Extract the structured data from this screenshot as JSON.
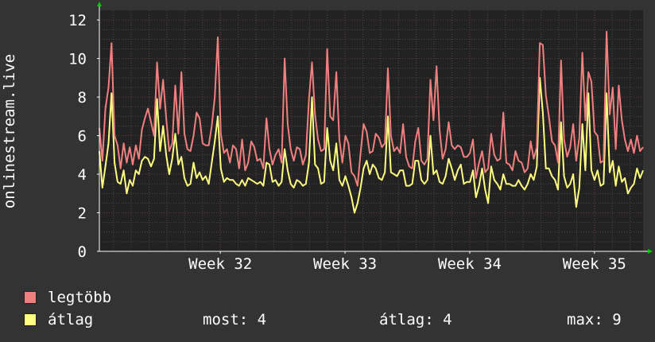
{
  "colors": {
    "background": "#333333",
    "plot_background": "#222222",
    "grid": "#4a4a4a",
    "axis": "#ffffff",
    "max_series": "#f07f7f",
    "avg_series": "#ffff80",
    "arrow": "#00cc00"
  },
  "legend": {
    "max_label": "legtöbb",
    "avg_label": "átlag"
  },
  "stats": {
    "current": "most: 4",
    "average": "átlag: 4",
    "maximum": "max: 9"
  },
  "chart_data": {
    "type": "line",
    "ylabel": "onlinestream.live",
    "xlabel": "",
    "title": "",
    "ylim": [
      0,
      12.5
    ],
    "yticks": [
      0,
      2,
      4,
      6,
      8,
      10,
      12
    ],
    "xticks": [
      "Week 32",
      "Week 33",
      "Week 34",
      "Week 35"
    ],
    "x_range_weeks": [
      31.03,
      35.39
    ],
    "xtick_positions_weeks": [
      32,
      33,
      34,
      35
    ],
    "grid": true,
    "legend_placement": "bottom-left",
    "series": [
      {
        "name": "legtöbb",
        "color": "#f07f7f",
        "x_start_week": 31.03,
        "x_end_week": 35.39,
        "values": [
          6.4,
          4.7,
          7.4,
          8.5,
          10.8,
          6.0,
          5.5,
          4.3,
          5.6,
          4.6,
          5.4,
          4.5,
          5.5,
          4.8,
          6.3,
          6.9,
          7.4,
          6.7,
          6.0,
          9.8,
          7.4,
          8.9,
          6.9,
          5.2,
          5.6,
          8.6,
          6.1,
          9.3,
          6.1,
          5.3,
          5.2,
          6.0,
          7.2,
          6.9,
          5.6,
          5.5,
          5.5,
          6.5,
          8.0,
          11.1,
          6.1,
          5.1,
          5.3,
          4.6,
          5.5,
          5.3,
          4.3,
          5.8,
          4.2,
          4.6,
          5.7,
          5.4,
          4.7,
          4.8,
          4.3,
          6.9,
          5.3,
          4.5,
          5.0,
          5.3,
          4.6,
          10.0,
          6.6,
          5.3,
          4.7,
          5.4,
          5.3,
          4.5,
          5.0,
          7.9,
          9.8,
          7.1,
          5.8,
          5.2,
          5.3,
          10.5,
          7.0,
          6.8,
          9.3,
          5.8,
          4.6,
          6.0,
          5.6,
          4.1,
          3.9,
          3.4,
          5.1,
          6.6,
          6.2,
          5.1,
          5.2,
          6.1,
          5.9,
          5.4,
          5.6,
          9.5,
          6.0,
          5.2,
          5.4,
          5.1,
          6.6,
          4.9,
          4.4,
          4.3,
          5.7,
          6.4,
          4.7,
          4.5,
          4.8,
          8.9,
          6.8,
          9.6,
          6.3,
          4.8,
          5.3,
          6.7,
          5.5,
          5.3,
          5.5,
          5.4,
          4.9,
          4.9,
          5.1,
          5.8,
          3.8,
          4.6,
          5.2,
          4.1,
          4.3,
          6.1,
          5.0,
          4.7,
          4.8,
          7.2,
          4.6,
          4.5,
          4.2,
          5.2,
          4.7,
          4.6,
          4.1,
          4.3,
          5.7,
          4.8,
          5.4,
          10.8,
          10.7,
          8.1,
          7.0,
          5.7,
          5.5,
          4.6,
          9.9,
          5.8,
          4.9,
          5.4,
          6.6,
          4.7,
          5.9,
          10.3,
          6.8,
          9.3,
          8.8,
          6.2,
          6.0,
          4.6,
          4.7,
          11.4,
          7.1,
          8.5,
          5.3,
          8.6,
          6.8,
          5.8,
          5.2,
          5.8,
          5.1,
          6.0,
          5.2,
          5.4
        ]
      },
      {
        "name": "átlag",
        "color": "#ffff80",
        "x_start_week": 31.03,
        "x_end_week": 35.39,
        "values": [
          5.2,
          3.3,
          4.4,
          5.6,
          8.2,
          4.6,
          3.6,
          3.5,
          4.2,
          3.0,
          3.7,
          3.4,
          4.2,
          4.0,
          4.7,
          4.9,
          4.8,
          4.4,
          4.8,
          7.9,
          5.2,
          6.5,
          5.0,
          4.0,
          4.8,
          6.1,
          4.5,
          4.9,
          3.8,
          3.4,
          3.5,
          4.6,
          3.8,
          4.1,
          3.7,
          3.9,
          3.5,
          4.6,
          5.7,
          7.0,
          4.3,
          3.6,
          3.8,
          3.7,
          3.7,
          3.5,
          3.4,
          3.7,
          3.4,
          3.8,
          3.7,
          3.6,
          3.5,
          3.6,
          3.4,
          4.6,
          4.5,
          3.6,
          3.7,
          3.4,
          3.6,
          5.3,
          4.2,
          3.5,
          3.3,
          3.7,
          3.6,
          3.4,
          3.5,
          4.6,
          8.0,
          4.5,
          4.3,
          3.5,
          3.6,
          6.4,
          4.7,
          4.2,
          5.6,
          3.7,
          3.4,
          3.9,
          3.4,
          2.8,
          2.0,
          2.5,
          3.3,
          4.3,
          4.7,
          4.0,
          4.5,
          4.3,
          3.8,
          3.7,
          4.1,
          7.0,
          4.1,
          4.0,
          3.9,
          4.2,
          4.2,
          3.4,
          3.4,
          3.5,
          4.7,
          4.7,
          3.7,
          3.5,
          3.7,
          6.0,
          4.0,
          4.2,
          3.6,
          3.5,
          3.9,
          4.8,
          4.3,
          3.7,
          4.2,
          4.5,
          3.5,
          3.6,
          3.6,
          4.2,
          2.8,
          3.4,
          4.3,
          3.2,
          2.5,
          4.4,
          3.7,
          3.5,
          3.2,
          4.0,
          3.5,
          3.5,
          3.4,
          3.4,
          3.7,
          3.4,
          3.2,
          3.5,
          4.0,
          3.7,
          4.4,
          9.0,
          7.2,
          4.3,
          4.3,
          3.9,
          3.7,
          3.2,
          6.7,
          3.9,
          3.3,
          3.5,
          4.0,
          2.3,
          3.3,
          6.6,
          4.2,
          8.2,
          4.2,
          3.7,
          4.2,
          3.4,
          3.5,
          8.2,
          4.1,
          4.7,
          3.4,
          4.4,
          3.6,
          3.8,
          3.0,
          3.3,
          3.5,
          4.3,
          3.8,
          4.2
        ]
      }
    ]
  }
}
